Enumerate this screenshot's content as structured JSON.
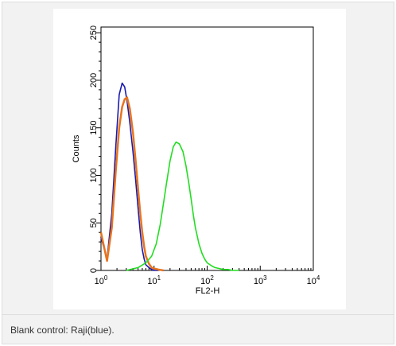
{
  "caption": "Blank control: Raji(blue).",
  "chart_data": {
    "type": "line",
    "xlabel": "FL2-H",
    "ylabel": "Counts",
    "x_scale": "log",
    "xlim": [
      1,
      10000
    ],
    "ylim": [
      0,
      256
    ],
    "x_ticks": [
      {
        "value": 1,
        "base": "10",
        "exp": "0"
      },
      {
        "value": 10,
        "base": "10",
        "exp": "1"
      },
      {
        "value": 100,
        "base": "10",
        "exp": "2"
      },
      {
        "value": 1000,
        "base": "10",
        "exp": "3"
      },
      {
        "value": 10000,
        "base": "10",
        "exp": "4"
      }
    ],
    "y_ticks": [
      {
        "value": 0,
        "label": "0"
      },
      {
        "value": 50,
        "label": "50"
      },
      {
        "value": 100,
        "label": "100"
      },
      {
        "value": 150,
        "label": "150"
      },
      {
        "value": 200,
        "label": "200"
      },
      {
        "value": 250,
        "label": "250"
      }
    ],
    "grid": false,
    "series": [
      {
        "color": "#1a1ab0",
        "x": [
          1,
          1.3,
          1.6,
          1.9,
          2.2,
          2.5,
          2.8,
          3.1,
          3.5,
          4,
          4.5,
          5,
          5.5,
          6,
          6.5,
          7,
          8,
          9,
          10,
          12
        ],
        "y": [
          35,
          12,
          60,
          130,
          185,
          197,
          193,
          178,
          155,
          125,
          95,
          65,
          40,
          22,
          12,
          6,
          3,
          1,
          0,
          0
        ]
      },
      {
        "color": "#e8741e",
        "x": [
          1,
          1.3,
          1.6,
          1.9,
          2.2,
          2.5,
          2.8,
          3.1,
          3.5,
          4,
          4.5,
          5,
          5.5,
          6,
          6.5,
          7,
          8,
          9,
          10,
          12,
          15
        ],
        "y": [
          40,
          10,
          45,
          105,
          150,
          172,
          180,
          182,
          170,
          145,
          115,
          85,
          60,
          40,
          25,
          15,
          7,
          3,
          2,
          1,
          0
        ]
      },
      {
        "color": "#22dd22",
        "x": [
          3,
          5,
          7,
          9,
          11,
          13,
          15,
          17,
          20,
          23,
          26,
          30,
          35,
          40,
          45,
          50,
          55,
          60,
          70,
          80,
          90,
          100,
          120,
          140,
          170,
          200,
          250,
          300,
          400
        ],
        "y": [
          0,
          3,
          8,
          15,
          28,
          48,
          70,
          90,
          115,
          130,
          135,
          133,
          125,
          110,
          92,
          75,
          58,
          45,
          28,
          18,
          12,
          8,
          5,
          3,
          2,
          1,
          1,
          0,
          0
        ]
      }
    ]
  }
}
